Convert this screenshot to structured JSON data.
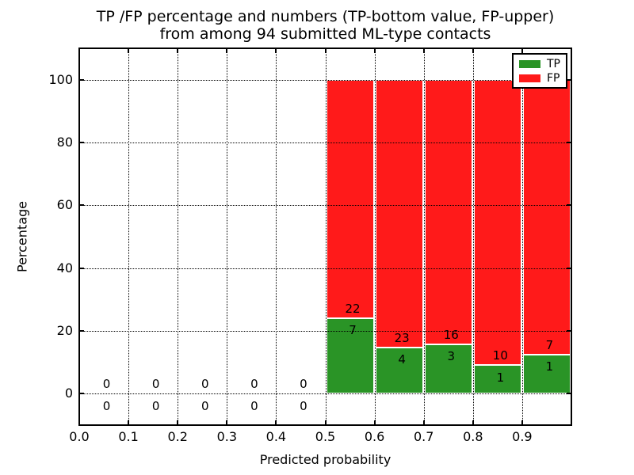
{
  "figure": {
    "title_line1": "TP /FP percentage and numbers (TP-bottom value, FP-upper)",
    "title_line2": "from among 94 submitted ML-type contacts",
    "xlabel": "Predicted probability",
    "ylabel": "Percentage"
  },
  "legend": {
    "position": "upper right",
    "items": [
      {
        "label": "TP",
        "color": "#2a9426"
      },
      {
        "label": "FP",
        "color": "#ff1a1a"
      }
    ]
  },
  "chart_data": {
    "type": "bar",
    "stacked": true,
    "normalized_to_100_percent": true,
    "title": "TP /FP percentage and numbers (TP-bottom value, FP-upper) from among 94 submitted ML-type contacts",
    "xlabel": "Predicted probability",
    "ylabel": "Percentage",
    "xlim": [
      0.0,
      1.0
    ],
    "ylim": [
      -10,
      110
    ],
    "grid": "dotted, drawn above bars",
    "total_contacts": 94,
    "xticks": [
      0.0,
      0.1,
      0.2,
      0.3,
      0.4,
      0.5,
      0.6,
      0.7,
      0.8,
      0.9
    ],
    "xtick_labels": [
      "0.0",
      "0.1",
      "0.2",
      "0.3",
      "0.4",
      "0.5",
      "0.6",
      "0.7",
      "0.8",
      "0.9"
    ],
    "yticks": [
      0,
      20,
      40,
      60,
      80,
      100
    ],
    "ytick_labels": [
      "0",
      "20",
      "40",
      "60",
      "80",
      "100"
    ],
    "colors": {
      "tp": "#2a9426",
      "fp": "#ff1a1a",
      "bar_edge": "#ffffff"
    },
    "bins": [
      {
        "range": [
          0.0,
          0.1
        ],
        "tp": 0,
        "fp": 0
      },
      {
        "range": [
          0.1,
          0.2
        ],
        "tp": 0,
        "fp": 0
      },
      {
        "range": [
          0.2,
          0.3
        ],
        "tp": 0,
        "fp": 0
      },
      {
        "range": [
          0.3,
          0.4
        ],
        "tp": 0,
        "fp": 0
      },
      {
        "range": [
          0.4,
          0.5
        ],
        "tp": 0,
        "fp": 0
      },
      {
        "range": [
          0.5,
          0.6
        ],
        "tp": 7,
        "fp": 22
      },
      {
        "range": [
          0.6,
          0.7
        ],
        "tp": 4,
        "fp": 23
      },
      {
        "range": [
          0.7,
          0.8
        ],
        "tp": 3,
        "fp": 16
      },
      {
        "range": [
          0.8,
          0.9
        ],
        "tp": 1,
        "fp": 10
      },
      {
        "range": [
          0.9,
          1.0
        ],
        "tp": 1,
        "fp": 7
      }
    ]
  }
}
